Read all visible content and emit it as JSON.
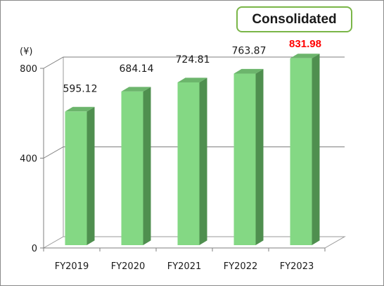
{
  "badge": {
    "label": "Consolidated"
  },
  "chart_data": {
    "type": "bar",
    "unit_label": "(¥)",
    "categories": [
      "FY2019",
      "FY2020",
      "FY2021",
      "FY2022",
      "FY2023"
    ],
    "values": [
      595.12,
      684.14,
      724.81,
      763.87,
      831.98
    ],
    "value_labels": [
      "595.12",
      "684.14",
      "724.81",
      "763.87",
      "831.98"
    ],
    "highlight_index": 4,
    "y_ticks": [
      "0",
      "400",
      "800"
    ],
    "ylim": [
      0,
      800
    ],
    "grid": true,
    "colors": {
      "bar_front": "#84d884",
      "bar_side": "#4f8f4f",
      "bar_top": "#6cb56c",
      "highlight_label": "#ff0000",
      "badge_border": "#7ab648"
    }
  }
}
